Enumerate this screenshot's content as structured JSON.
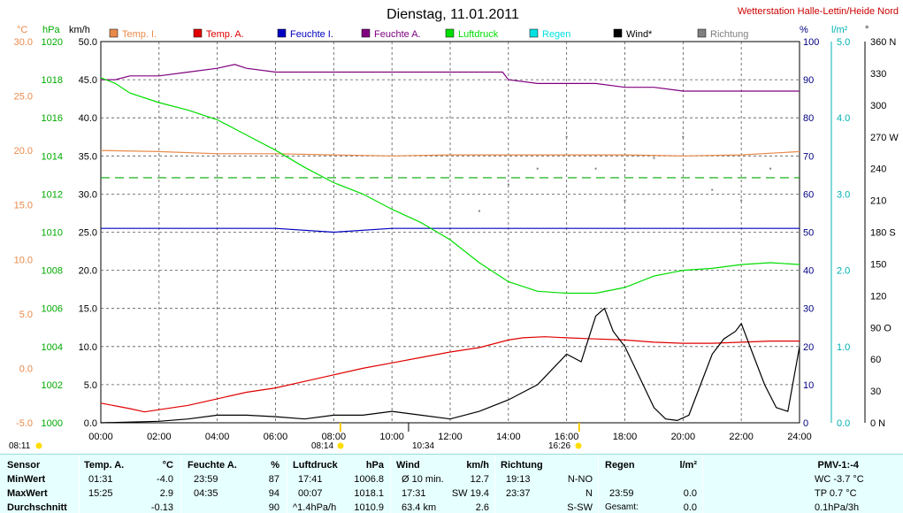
{
  "title": "Dienstag, 11.01.2011",
  "station": "Wetterstation Halle-Lettin/Heide Nord",
  "axis_units": {
    "temp": "°C",
    "pressure": "hPa",
    "wind": "km/h",
    "humidity": "%",
    "rain": "l/m²",
    "direction": "°"
  },
  "legend": [
    {
      "label": "Temp. I.",
      "color": "#e88a4a"
    },
    {
      "label": "Temp. A.",
      "color": "#e00000"
    },
    {
      "label": "Feuchte I.",
      "color": "#0000c0"
    },
    {
      "label": "Feuchte A.",
      "color": "#800080"
    },
    {
      "label": "Luftdruck",
      "color": "#00dd00"
    },
    {
      "label": "Regen",
      "color": "#00e0e0"
    },
    {
      "label": "Wind*",
      "color": "#000000"
    },
    {
      "label": "Richtung",
      "color": "#808080"
    }
  ],
  "chart_data": {
    "type": "line",
    "x_ticks": [
      "00:00",
      "02:00",
      "04:00",
      "06:00",
      "08:00",
      "10:00",
      "12:00",
      "14:00",
      "16:00",
      "18:00",
      "20:00",
      "22:00",
      "24:00"
    ],
    "axes": {
      "temp": {
        "ticks": [
          "-5.0",
          "0.0",
          "5.0",
          "10.0",
          "15.0",
          "20.0",
          "25.0",
          "30.0"
        ],
        "ylim": [
          -5,
          30
        ]
      },
      "pressure": {
        "ticks": [
          "1000",
          "1002",
          "1004",
          "1006",
          "1008",
          "1010",
          "1012",
          "1014",
          "1016",
          "1018",
          "1020"
        ],
        "ylim": [
          1000,
          1020
        ]
      },
      "wind": {
        "ticks": [
          "0.0",
          "5.0",
          "10.0",
          "15.0",
          "20.0",
          "25.0",
          "30.0",
          "35.0",
          "40.0",
          "45.0",
          "50.0"
        ],
        "ylim": [
          0,
          50
        ]
      },
      "humidity": {
        "ticks": [
          "0",
          "10",
          "20",
          "30",
          "40",
          "50",
          "60",
          "70",
          "80",
          "90",
          "100"
        ],
        "ylim": [
          0,
          100
        ]
      },
      "rain": {
        "ticks": [
          "0.0",
          "1.0",
          "2.0",
          "3.0",
          "4.0",
          "5.0"
        ],
        "ylim": [
          0,
          5
        ]
      },
      "direction": {
        "ticks": [
          "0 N",
          "30",
          "60",
          "90 O",
          "120",
          "150",
          "180 S",
          "210",
          "240",
          "270 W",
          "300",
          "330",
          "360 N"
        ],
        "ylim": [
          0,
          360
        ]
      }
    },
    "series": [
      {
        "name": "Temp. I.",
        "axis": "temp",
        "color": "#e88a4a",
        "x": [
          0,
          2,
          4,
          6,
          8,
          10,
          12,
          14,
          16,
          18,
          20,
          22,
          24
        ],
        "values": [
          20.0,
          19.9,
          19.7,
          19.7,
          19.6,
          19.5,
          19.6,
          19.6,
          19.6,
          19.6,
          19.5,
          19.6,
          19.9
        ]
      },
      {
        "name": "Temp. A.",
        "axis": "temp",
        "color": "#e00000",
        "x": [
          0,
          1,
          1.5,
          2,
          3,
          4,
          5,
          6,
          7,
          8,
          9,
          10,
          11,
          12,
          13,
          14,
          14.5,
          15.25,
          16,
          17,
          18,
          19,
          20,
          21,
          22,
          23,
          24
        ],
        "values": [
          -3.2,
          -3.7,
          -4.0,
          -3.8,
          -3.4,
          -2.8,
          -2.2,
          -1.8,
          -1.2,
          -0.6,
          0.0,
          0.5,
          1.0,
          1.5,
          1.9,
          2.6,
          2.8,
          2.9,
          2.8,
          2.7,
          2.6,
          2.4,
          2.3,
          2.3,
          2.4,
          2.5,
          2.5
        ]
      },
      {
        "name": "Feuchte I.",
        "axis": "humidity",
        "color": "#0000c0",
        "x": [
          0,
          2,
          4,
          6,
          8,
          10,
          12,
          14,
          16,
          18,
          20,
          22,
          24
        ],
        "values": [
          51,
          51,
          51,
          51,
          50,
          51,
          51,
          51,
          51,
          51,
          51,
          51,
          51
        ]
      },
      {
        "name": "Feuchte A.",
        "axis": "humidity",
        "color": "#800080",
        "x": [
          0,
          0.5,
          1,
          2,
          3,
          4,
          4.6,
          5,
          6,
          8,
          10,
          12,
          13.8,
          14,
          15,
          16.5,
          17,
          18,
          19,
          20,
          21,
          22,
          23.98
        ],
        "values": [
          90,
          90,
          91,
          91,
          92,
          93,
          94,
          93,
          92,
          92,
          92,
          92,
          92,
          90,
          89,
          89,
          89,
          88,
          88,
          87,
          87,
          87,
          87
        ]
      },
      {
        "name": "Luftdruck",
        "axis": "pressure",
        "color": "#00dd00",
        "x": [
          0,
          0.5,
          1,
          2,
          3,
          4,
          5,
          6,
          7,
          8,
          9,
          10,
          11,
          12,
          13,
          14,
          15,
          16,
          17,
          18,
          19,
          20,
          21,
          22,
          23,
          24
        ],
        "values": [
          1018.1,
          1017.8,
          1017.3,
          1016.8,
          1016.4,
          1015.9,
          1015.1,
          1014.3,
          1013.4,
          1012.6,
          1012.0,
          1011.2,
          1010.5,
          1009.6,
          1008.4,
          1007.4,
          1006.9,
          1006.8,
          1006.8,
          1007.1,
          1007.7,
          1008.0,
          1008.1,
          1008.3,
          1008.4,
          1008.3
        ]
      },
      {
        "name": "Wind*",
        "axis": "wind",
        "color": "#000000",
        "x": [
          0,
          2,
          3,
          4,
          5,
          6,
          7,
          8,
          9,
          10,
          11,
          12,
          13,
          14,
          15,
          15.5,
          16,
          16.5,
          17,
          17.3,
          17.6,
          18,
          18.5,
          19,
          19.4,
          19.8,
          20.2,
          20.6,
          21,
          21.4,
          21.8,
          22,
          22.4,
          22.8,
          23.2,
          23.6,
          24
        ],
        "values": [
          0,
          0.2,
          0.5,
          1.0,
          1.0,
          0.8,
          0.5,
          1.0,
          1.0,
          1.5,
          1.0,
          0.5,
          1.5,
          3.0,
          5.0,
          7.0,
          9.0,
          8.0,
          14.0,
          15.0,
          12.0,
          10.0,
          6.0,
          2.0,
          0.5,
          0.3,
          1.0,
          5.0,
          9.0,
          11.0,
          12.0,
          13.0,
          9.0,
          5.0,
          2.0,
          1.5,
          10.0
        ]
      },
      {
        "name": "Richtung",
        "axis": "direction",
        "color": "#808080",
        "x": [
          13,
          14,
          15,
          16,
          17,
          18,
          19,
          20,
          21,
          22,
          23,
          24
        ],
        "values": [
          200,
          225,
          240,
          270,
          240,
          210,
          250,
          270,
          220,
          210,
          240,
          270
        ]
      }
    ],
    "reference_line": {
      "name": "PMV",
      "axis": "temp",
      "value": 17.5,
      "style": "dashed",
      "color": "#00aa00"
    },
    "grid": true
  },
  "annotations": {
    "sunrise": "08:11",
    "sunrise_mark": "08:14",
    "solar_noon": "10:34",
    "sunset_mark": "16:26"
  },
  "footer": {
    "sensor": {
      "header": "Sensor",
      "rows": [
        "MinWert",
        "MaxWert",
        "Durchschnitt"
      ]
    },
    "temp": {
      "header": "Temp. A.",
      "unit": "°C",
      "rows": [
        [
          "01:31",
          "-4.0"
        ],
        [
          "15:25",
          "2.9"
        ],
        [
          "",
          "-0.13"
        ]
      ]
    },
    "feuchte": {
      "header": "Feuchte A.",
      "unit": "%",
      "rows": [
        [
          "23:59",
          "87"
        ],
        [
          "04:35",
          "94"
        ],
        [
          "",
          "90"
        ]
      ]
    },
    "luftdruck": {
      "header": "Luftdruck",
      "unit": "hPa",
      "rows": [
        [
          "17:41",
          "1006.8"
        ],
        [
          "00:07",
          "1018.1"
        ],
        [
          "^1.4hPa/h",
          "1010.9"
        ]
      ]
    },
    "wind": {
      "header": "Wind",
      "unit": "km/h",
      "rows": [
        [
          "Ø 10 min.",
          "12.7"
        ],
        [
          "17:31",
          "SW 19.4"
        ],
        [
          "63.4 km",
          "2.6"
        ]
      ]
    },
    "richtung": {
      "header": "Richtung",
      "rows": [
        [
          "19:13",
          "N-NO"
        ],
        [
          "23:37",
          "N"
        ],
        [
          "",
          "S-SW"
        ]
      ]
    },
    "regen": {
      "header": "Regen",
      "unit": "l/m²",
      "rows": [
        [
          "",
          ""
        ],
        [
          "23:59",
          "0.0"
        ],
        [
          "Gesamt:",
          "0.0"
        ]
      ]
    },
    "pmv": {
      "header": "PMV-1:-4",
      "rows": [
        "WC -3.7 °C",
        "TP 0.7 °C",
        "0.1hPa/3h"
      ]
    }
  }
}
